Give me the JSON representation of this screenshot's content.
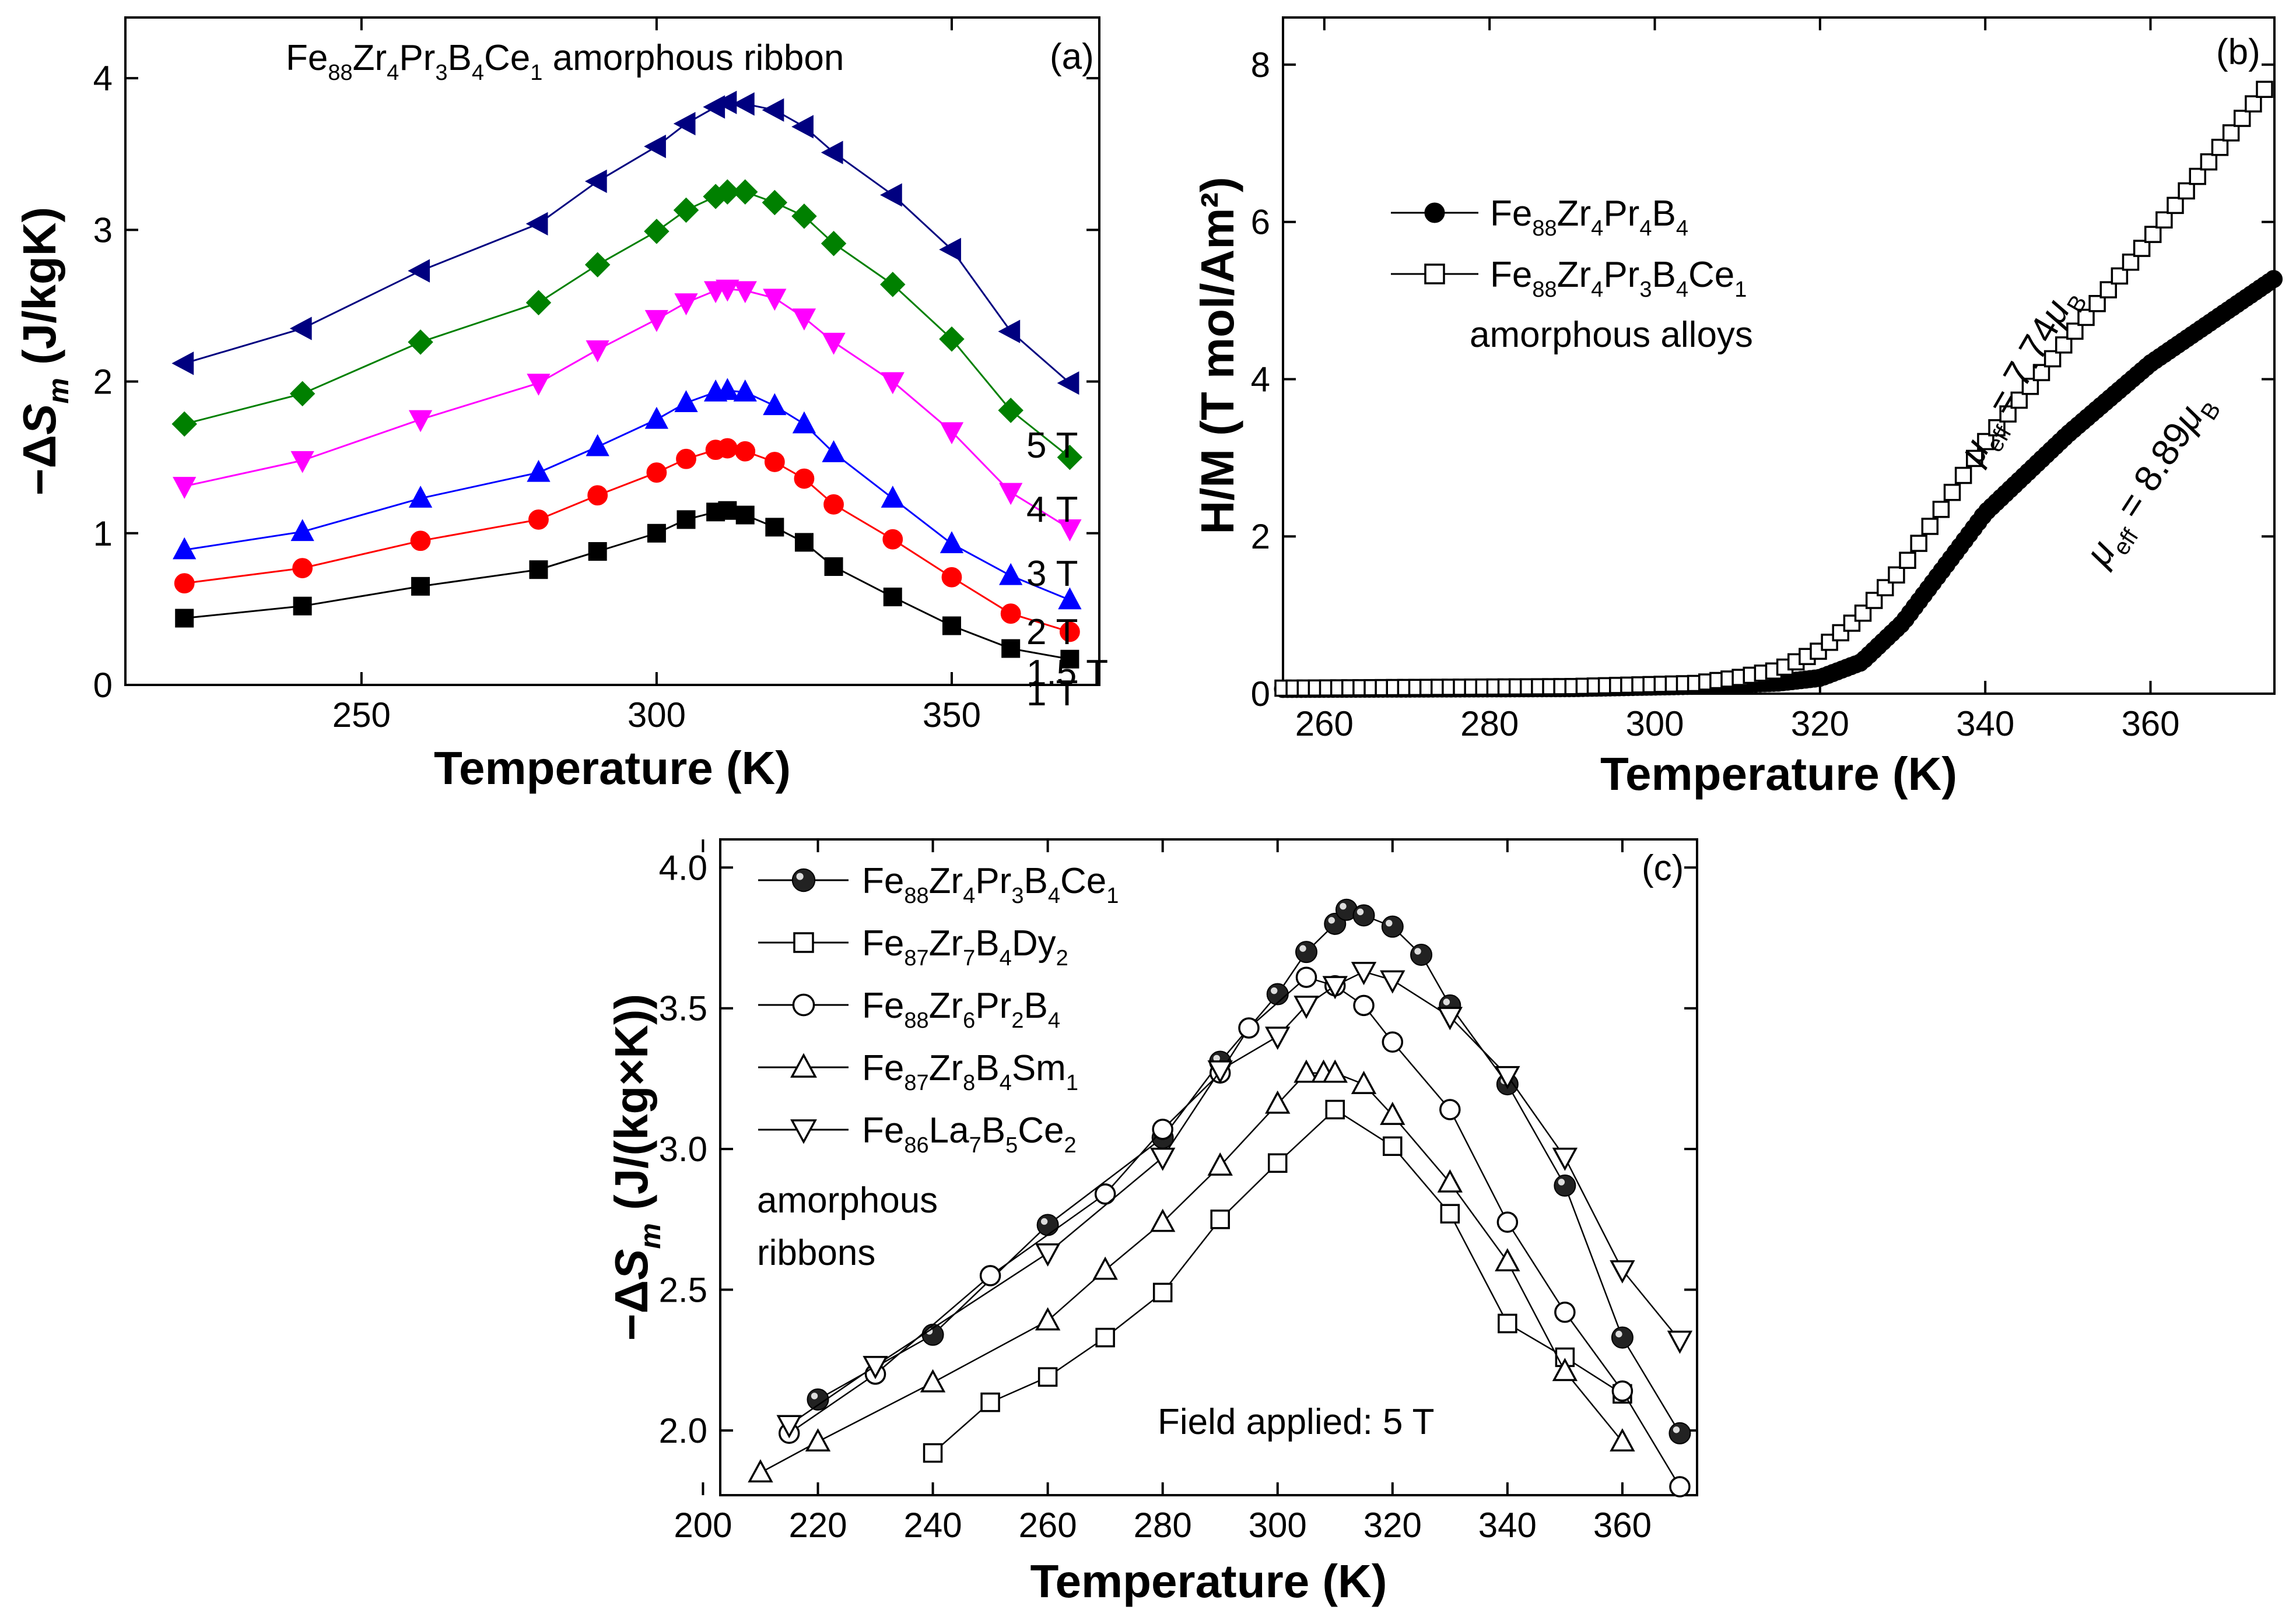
{
  "chart_data": [
    {
      "type": "line",
      "panel_label": "(a)",
      "title_parts": [
        [
          "Fe",
          0
        ],
        [
          "88",
          1
        ],
        [
          "Zr",
          0
        ],
        [
          "4",
          1
        ],
        [
          "Pr",
          0
        ],
        [
          "3",
          1
        ],
        [
          "B",
          0
        ],
        [
          "4",
          1
        ],
        [
          "Ce",
          0
        ],
        [
          "1",
          1
        ],
        [
          " amorphous ribbon",
          0
        ]
      ],
      "xlabel": "Temperature (K)",
      "ylabel": "−ΔS_m (J/kgK)",
      "ylabel_parts": [
        [
          "−Δ",
          0
        ],
        [
          "S",
          2
        ],
        [
          "m",
          3
        ],
        [
          " (J/kgK)",
          0
        ]
      ],
      "xlim": [
        210,
        375
      ],
      "ylim": [
        0,
        4.4
      ],
      "xticks": [
        250,
        300,
        350
      ],
      "yticks": [
        0,
        1,
        2,
        3,
        4
      ],
      "x": [
        220,
        240,
        260,
        280,
        290,
        300,
        305,
        310,
        312,
        315,
        320,
        325,
        330,
        340,
        350,
        360,
        370
      ],
      "series": [
        {
          "name": "1 T",
          "color": "#000000",
          "marker": "square",
          "values": [
            0.44,
            0.52,
            0.65,
            0.76,
            0.88,
            1.0,
            1.09,
            1.14,
            1.15,
            1.12,
            1.04,
            0.94,
            0.78,
            0.58,
            0.39,
            0.24,
            0.17
          ]
        },
        {
          "name": "1.5 T",
          "color": "#ff0000",
          "marker": "circle",
          "values": [
            0.67,
            0.77,
            0.95,
            1.09,
            1.25,
            1.4,
            1.49,
            1.55,
            1.56,
            1.54,
            1.47,
            1.36,
            1.19,
            0.96,
            0.71,
            0.47,
            0.35
          ]
        },
        {
          "name": "2 T",
          "color": "#0000ff",
          "marker": "triangle-up",
          "values": [
            0.89,
            1.01,
            1.23,
            1.4,
            1.57,
            1.75,
            1.86,
            1.93,
            1.94,
            1.93,
            1.84,
            1.72,
            1.53,
            1.23,
            0.93,
            0.72,
            0.56
          ]
        },
        {
          "name": "3 T",
          "color": "#ff00ff",
          "marker": "triangle-down",
          "values": [
            1.31,
            1.48,
            1.75,
            1.99,
            2.21,
            2.41,
            2.52,
            2.6,
            2.61,
            2.6,
            2.55,
            2.42,
            2.26,
            2.0,
            1.67,
            1.27,
            1.03
          ]
        },
        {
          "name": "4 T",
          "color": "#008000",
          "marker": "diamond",
          "values": [
            1.72,
            1.92,
            2.26,
            2.52,
            2.77,
            2.99,
            3.13,
            3.22,
            3.25,
            3.25,
            3.18,
            3.09,
            2.91,
            2.64,
            2.28,
            1.81,
            1.5
          ]
        },
        {
          "name": "5 T",
          "color": "#000080",
          "marker": "triangle-left",
          "values": [
            2.12,
            2.35,
            2.73,
            3.04,
            3.32,
            3.55,
            3.7,
            3.81,
            3.84,
            3.83,
            3.79,
            3.68,
            3.51,
            3.23,
            2.87,
            2.33,
            1.99
          ]
        }
      ]
    },
    {
      "type": "scatter",
      "panel_label": "(b)",
      "xlabel": "Temperature (K)",
      "ylabel": "H/M (T mol/Am²)",
      "xlim": [
        255,
        375
      ],
      "ylim": [
        0,
        8.6
      ],
      "xticks": [
        260,
        280,
        300,
        320,
        340,
        360
      ],
      "yticks": [
        0,
        2,
        4,
        6,
        8
      ],
      "series": [
        {
          "name": "Fe88Zr4Pr4B4",
          "label_parts": [
            [
              "Fe",
              0
            ],
            [
              "88",
              1
            ],
            [
              "Zr",
              0
            ],
            [
              "4",
              1
            ],
            [
              "Pr",
              0
            ],
            [
              "4",
              1
            ],
            [
              "B",
              0
            ],
            [
              "4",
              1
            ]
          ],
          "marker": "filled-circle",
          "x": [
            255,
            290,
            305,
            315,
            320,
            325,
            330,
            335,
            340,
            350,
            360,
            375
          ],
          "values": [
            0.06,
            0.07,
            0.1,
            0.14,
            0.2,
            0.4,
            0.9,
            1.6,
            2.3,
            3.3,
            4.2,
            5.28
          ]
        },
        {
          "name": "Fe88Zr4Pr3B4Ce1",
          "label_parts": [
            [
              "Fe",
              0
            ],
            [
              "88",
              1
            ],
            [
              "Zr",
              0
            ],
            [
              "4",
              1
            ],
            [
              "Pr",
              0
            ],
            [
              "3",
              1
            ],
            [
              "B",
              0
            ],
            [
              "4",
              1
            ],
            [
              "Ce",
              0
            ],
            [
              "1",
              1
            ]
          ],
          "marker": "open-square",
          "x": [
            255,
            290,
            305,
            310,
            315,
            320,
            325,
            330,
            335,
            340,
            350,
            360,
            375
          ],
          "values": [
            0.07,
            0.09,
            0.13,
            0.2,
            0.3,
            0.55,
            1.0,
            1.6,
            2.4,
            3.2,
            4.5,
            5.8,
            7.85
          ]
        }
      ],
      "legend_note": "amorphous alloys",
      "annotations": [
        {
          "parts": [
            [
              "μ",
              2
            ],
            [
              "eff",
              1
            ],
            [
              " = 7.74",
              0
            ],
            [
              "μ",
              2
            ],
            [
              "B",
              1
            ]
          ]
        },
        {
          "parts": [
            [
              "μ",
              2
            ],
            [
              "eff",
              1
            ],
            [
              " = 8.89",
              0
            ],
            [
              "μ",
              2
            ],
            [
              "B",
              1
            ]
          ]
        }
      ]
    },
    {
      "type": "line",
      "panel_label": "(c)",
      "xlabel": "Temperature (K)",
      "ylabel": "−ΔS_m (J/(kg×K))",
      "ylabel_parts": [
        [
          "−Δ",
          0
        ],
        [
          "S",
          2
        ],
        [
          "m",
          3
        ],
        [
          " (J/(kg×K))",
          0
        ]
      ],
      "xlim": [
        203,
        373
      ],
      "ylim": [
        1.77,
        4.1
      ],
      "xticks": [
        200,
        220,
        240,
        260,
        280,
        300,
        320,
        340,
        360
      ],
      "yticks": [
        "2.0",
        "2.5",
        "3.0",
        "3.5",
        "4.0"
      ],
      "legend_note": [
        "amorphous",
        "ribbons"
      ],
      "annotation": "Field applied: 5 T",
      "series": [
        {
          "name": "Fe88Zr4Pr3B4Ce1",
          "label_parts": [
            [
              "Fe",
              0
            ],
            [
              "88",
              1
            ],
            [
              "Zr",
              0
            ],
            [
              "4",
              1
            ],
            [
              "Pr",
              0
            ],
            [
              "3",
              1
            ],
            [
              "B",
              0
            ],
            [
              "4",
              1
            ],
            [
              "Ce",
              0
            ],
            [
              "1",
              1
            ]
          ],
          "marker": "ball",
          "x": [
            220,
            240,
            260,
            280,
            290,
            300,
            305,
            310,
            312,
            315,
            320,
            325,
            330,
            340,
            350,
            360,
            370
          ],
          "values": [
            2.11,
            2.34,
            2.73,
            3.04,
            3.31,
            3.55,
            3.7,
            3.8,
            3.85,
            3.83,
            3.79,
            3.69,
            3.51,
            3.23,
            2.87,
            2.33,
            1.99
          ]
        },
        {
          "name": "Fe87Zr7B4Dy2",
          "label_parts": [
            [
              "Fe",
              0
            ],
            [
              "87",
              1
            ],
            [
              "Zr",
              0
            ],
            [
              "7",
              1
            ],
            [
              "B",
              0
            ],
            [
              "4",
              1
            ],
            [
              "Dy",
              0
            ],
            [
              "2",
              1
            ]
          ],
          "marker": "open-square",
          "x": [
            240,
            250,
            260,
            270,
            280,
            290,
            300,
            310,
            320,
            330,
            340,
            350,
            360
          ],
          "values": [
            1.92,
            2.1,
            2.19,
            2.33,
            2.49,
            2.75,
            2.95,
            3.14,
            3.01,
            2.77,
            2.38,
            2.26,
            2.13
          ]
        },
        {
          "name": "Fe88Zr6Pr2B4",
          "label_parts": [
            [
              "Fe",
              0
            ],
            [
              "88",
              1
            ],
            [
              "Zr",
              0
            ],
            [
              "6",
              1
            ],
            [
              "Pr",
              0
            ],
            [
              "2",
              1
            ],
            [
              "B",
              0
            ],
            [
              "4",
              1
            ]
          ],
          "marker": "open-circle",
          "x": [
            215,
            230,
            250,
            270,
            280,
            290,
            295,
            305,
            310,
            315,
            320,
            330,
            340,
            350,
            360,
            370
          ],
          "values": [
            1.99,
            2.2,
            2.55,
            2.84,
            3.07,
            3.27,
            3.43,
            3.61,
            3.58,
            3.51,
            3.38,
            3.14,
            2.74,
            2.42,
            2.14,
            1.8
          ]
        },
        {
          "name": "Fe87Zr8B4Sm1",
          "label_parts": [
            [
              "Fe",
              0
            ],
            [
              "87",
              1
            ],
            [
              "Zr",
              0
            ],
            [
              "8",
              1
            ],
            [
              "B",
              0
            ],
            [
              "4",
              1
            ],
            [
              "Sm",
              0
            ],
            [
              "1",
              1
            ]
          ],
          "marker": "open-triangle-up",
          "x": [
            210,
            220,
            240,
            260,
            270,
            280,
            290,
            300,
            305,
            308,
            310,
            315,
            320,
            330,
            340,
            350,
            360
          ],
          "values": [
            1.85,
            1.96,
            2.17,
            2.39,
            2.57,
            2.74,
            2.94,
            3.16,
            3.27,
            3.27,
            3.27,
            3.23,
            3.12,
            2.88,
            2.6,
            2.21,
            1.96
          ]
        },
        {
          "name": "Fe86La7B5Ce2",
          "label_parts": [
            [
              "Fe",
              0
            ],
            [
              "86",
              1
            ],
            [
              "La",
              0
            ],
            [
              "7",
              1
            ],
            [
              "B",
              0
            ],
            [
              "5",
              1
            ],
            [
              "Ce",
              0
            ],
            [
              "2",
              1
            ]
          ],
          "marker": "open-triangle-down",
          "x": [
            215,
            230,
            260,
            280,
            290,
            300,
            305,
            310,
            315,
            320,
            330,
            340,
            350,
            360,
            370
          ],
          "values": [
            2.02,
            2.23,
            2.63,
            2.97,
            3.28,
            3.4,
            3.51,
            3.58,
            3.63,
            3.6,
            3.47,
            3.26,
            2.97,
            2.57,
            2.32
          ]
        }
      ]
    }
  ]
}
